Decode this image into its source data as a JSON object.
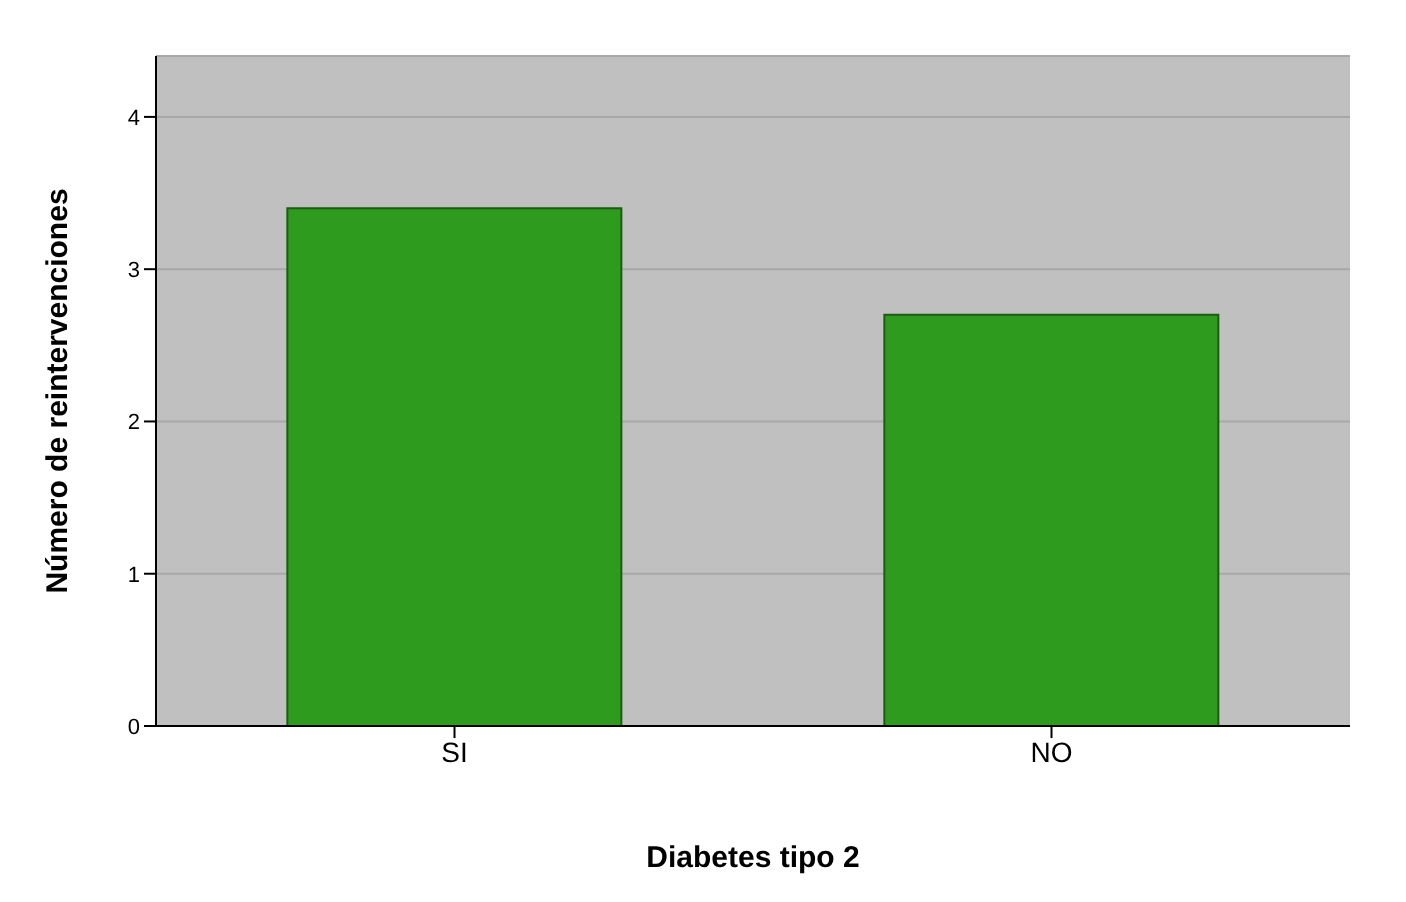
{
  "chart_data": {
    "type": "bar",
    "xlabel": "Diabetes tipo 2",
    "ylabel": "Número de reintervenciones",
    "categories": [
      "SI",
      "NO"
    ],
    "series": [
      {
        "color": "#2e9a1e",
        "values": [
          3.4,
          2.7
        ]
      }
    ],
    "ylim": [
      0,
      4.4
    ],
    "yticks": [
      0,
      1,
      2,
      3,
      4
    ],
    "grid": "y"
  }
}
